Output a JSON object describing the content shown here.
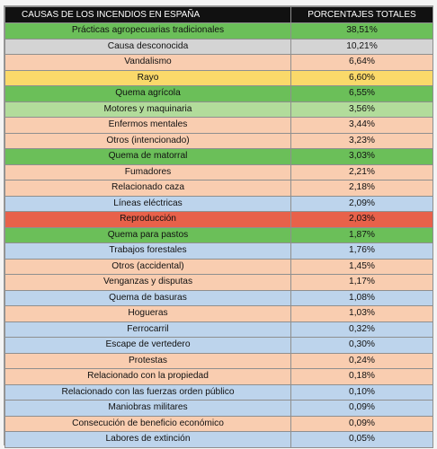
{
  "table": {
    "headers": [
      "CAUSAS DE LOS INCENDIOS EN ESPAÑA",
      "PORCENTAJES TOTALES"
    ],
    "row_colors": {
      "green": "#6bbf59",
      "gray": "#d4d4d4",
      "peach": "#f9cdb0",
      "yellow": "#fad96a",
      "lightgreen": "#b2dc9b",
      "blue": "#bdd4ec",
      "red": "#e8614a"
    },
    "rows": [
      {
        "cause": "Prácticas agropecuarias tradicionales",
        "percent": "38,51%",
        "color": "green"
      },
      {
        "cause": "Causa desconocida",
        "percent": "10,21%",
        "color": "gray"
      },
      {
        "cause": "Vandalismo",
        "percent": "6,64%",
        "color": "peach"
      },
      {
        "cause": "Rayo",
        "percent": "6,60%",
        "color": "yellow"
      },
      {
        "cause": "Quema agrícola",
        "percent": "6,55%",
        "color": "green"
      },
      {
        "cause": "Motores y maquinaria",
        "percent": "3,56%",
        "color": "lightgreen"
      },
      {
        "cause": "Enfermos mentales",
        "percent": "3,44%",
        "color": "peach"
      },
      {
        "cause": "Otros (intencionado)",
        "percent": "3,23%",
        "color": "peach"
      },
      {
        "cause": "Quema de matorral",
        "percent": "3,03%",
        "color": "green"
      },
      {
        "cause": "Fumadores",
        "percent": "2,21%",
        "color": "peach"
      },
      {
        "cause": "Relacionado caza",
        "percent": "2,18%",
        "color": "peach"
      },
      {
        "cause": "Líneas eléctricas",
        "percent": "2,09%",
        "color": "blue"
      },
      {
        "cause": "Reproducción",
        "percent": "2,03%",
        "color": "red"
      },
      {
        "cause": "Quema para pastos",
        "percent": "1,87%",
        "color": "green"
      },
      {
        "cause": "Trabajos forestales",
        "percent": "1,76%",
        "color": "blue"
      },
      {
        "cause": "Otros (accidental)",
        "percent": "1,45%",
        "color": "peach"
      },
      {
        "cause": "Venganzas y disputas",
        "percent": "1,17%",
        "color": "peach"
      },
      {
        "cause": "Quema de basuras",
        "percent": "1,08%",
        "color": "blue"
      },
      {
        "cause": "Hogueras",
        "percent": "1,03%",
        "color": "peach"
      },
      {
        "cause": "Ferrocarril",
        "percent": "0,32%",
        "color": "blue"
      },
      {
        "cause": "Escape de vertedero",
        "percent": "0,30%",
        "color": "blue"
      },
      {
        "cause": "Protestas",
        "percent": "0,24%",
        "color": "peach"
      },
      {
        "cause": "Relacionado con la propiedad",
        "percent": "0,18%",
        "color": "peach"
      },
      {
        "cause": "Relacionado con las fuerzas orden público",
        "percent": "0,10%",
        "color": "blue"
      },
      {
        "cause": "Maniobras militares",
        "percent": "0,09%",
        "color": "blue"
      },
      {
        "cause": "Consecución de beneficio económico",
        "percent": "0,09%",
        "color": "peach"
      },
      {
        "cause": "Labores de extinción",
        "percent": "0,05%",
        "color": "blue"
      }
    ]
  }
}
